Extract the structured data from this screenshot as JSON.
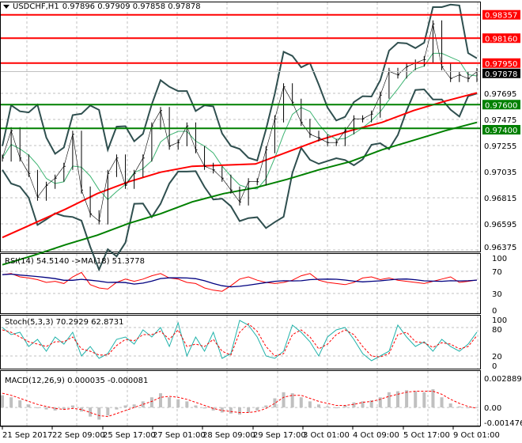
{
  "header": {
    "symbol": "USDCHF,H1",
    "ohlc": "0.97896 0.97909 0.97858 0.97878"
  },
  "colors": {
    "resistance": "#ff0000",
    "support": "#008000",
    "current": "#000000",
    "ma_fast": "#ff0000",
    "ma_slow": "#008000",
    "bands": "#2f4f4f",
    "rsi": "#ff0000",
    "rsi_ma": "#000080",
    "stoch_main": "#20b2aa",
    "stoch_signal": "#ff0000",
    "macd_hist": "#c0c0c0",
    "macd_signal": "#ff0000"
  },
  "chart_data": [
    {
      "type": "line",
      "title": "USDCHF,H1",
      "ylim": [
        0.96375,
        0.98357
      ],
      "x_tick_labels": [
        "21 Sep 2017",
        "22 Sep 09:00",
        "25 Sep 17:00",
        "27 Sep 01:00",
        "28 Sep 09:00",
        "29 Sep 17:00",
        "3 Oct 01:00",
        "4 Oct 09:00",
        "5 Oct 17:00",
        "9 Oct 01:00"
      ],
      "y_tick_labels": [
        "0.97695",
        "0.97475",
        "0.97255",
        "0.97035",
        "0.96815",
        "0.96595",
        "0.96375"
      ],
      "grid": true,
      "close": [
        0.9715,
        0.9738,
        0.9715,
        0.9702,
        0.9682,
        0.9692,
        0.9698,
        0.9708,
        0.9735,
        0.9688,
        0.9668,
        0.9662,
        0.9702,
        0.9715,
        0.9692,
        0.9702,
        0.9715,
        0.9742,
        0.9755,
        0.9725,
        0.9728,
        0.9742,
        0.9722,
        0.9708,
        0.9705,
        0.9698,
        0.9688,
        0.9678,
        0.9695,
        0.9695,
        0.9722,
        0.9748,
        0.9775,
        0.9762,
        0.9745,
        0.9735,
        0.9732,
        0.9728,
        0.9728,
        0.9738,
        0.9748,
        0.9748,
        0.9752,
        0.9768,
        0.9788,
        0.9785,
        0.9792,
        0.9795,
        0.9798,
        0.9828,
        0.9792,
        0.9782,
        0.9785,
        0.9782,
        0.97878
      ],
      "ma_fast": [
        0.9648,
        0.966,
        0.9672,
        0.9685,
        0.9695,
        0.9703,
        0.9708,
        0.9709,
        0.971,
        0.972,
        0.973,
        0.9738,
        0.9745,
        0.9755,
        0.9763,
        0.977
      ],
      "ma_slow": [
        0.9625,
        0.9633,
        0.9642,
        0.965,
        0.966,
        0.9668,
        0.9678,
        0.9685,
        0.969,
        0.9697,
        0.9705,
        0.9712,
        0.9722,
        0.973,
        0.9738,
        0.9745
      ],
      "levels": [
        {
          "value": "0.98357",
          "kind": "resistance"
        },
        {
          "value": "0.98160",
          "kind": "resistance"
        },
        {
          "value": "0.97950",
          "kind": "resistance"
        },
        {
          "value": "0.97878",
          "kind": "current"
        },
        {
          "value": "0.97600",
          "kind": "support"
        },
        {
          "value": "0.97400",
          "kind": "support"
        }
      ]
    },
    {
      "type": "line",
      "title": "RSI(14) 54.5140  ->MA(18) 51.3778",
      "ylim": [
        0,
        100
      ],
      "y_tick_labels": [
        "100",
        "70",
        "30",
        "0"
      ],
      "rsi": [
        64,
        66,
        60,
        58,
        55,
        50,
        52,
        48,
        60,
        68,
        46,
        40,
        38,
        50,
        56,
        52,
        56,
        62,
        66,
        58,
        56,
        50,
        48,
        40,
        36,
        34,
        44,
        56,
        60,
        54,
        50,
        48,
        50,
        54,
        62,
        66,
        54,
        50,
        48,
        46,
        50,
        58,
        60,
        55,
        58,
        54,
        52,
        50,
        48,
        52,
        56,
        60,
        50,
        52,
        54.5
      ]
    },
    {
      "type": "line",
      "title": "Stoch(5,3,3) 70.2929 62.8731",
      "ylim": [
        0,
        100
      ],
      "y_tick_labels": [
        "100",
        "80",
        "20",
        "0"
      ],
      "main": [
        80,
        65,
        70,
        40,
        55,
        30,
        60,
        45,
        70,
        20,
        40,
        15,
        25,
        55,
        60,
        45,
        75,
        60,
        80,
        40,
        90,
        20,
        60,
        30,
        70,
        15,
        25,
        95,
        85,
        60,
        20,
        15,
        30,
        85,
        70,
        50,
        20,
        60,
        75,
        80,
        55,
        25,
        10,
        20,
        30,
        85,
        60,
        40,
        50,
        30,
        55,
        40,
        30,
        45,
        70.3
      ],
      "signal": [
        75,
        70,
        60,
        50,
        45,
        40,
        50,
        50,
        60,
        35,
        30,
        22,
        22,
        42,
        55,
        52,
        65,
        65,
        72,
        55,
        75,
        40,
        45,
        40,
        55,
        30,
        22,
        70,
        88,
        72,
        40,
        20,
        25,
        65,
        75,
        60,
        35,
        45,
        65,
        75,
        65,
        40,
        20,
        18,
        25,
        65,
        70,
        50,
        48,
        38,
        48,
        45,
        35,
        40,
        62.9
      ]
    },
    {
      "type": "bar",
      "title": "MACD(12,26,9) 0.000035 -0.000081",
      "ylim": [
        -0.001476,
        0.002889
      ],
      "y_tick_labels": [
        "0.002889",
        "0.00",
        "-0.001476"
      ],
      "hist": [
        0.0012,
        0.001,
        0.0007,
        0.0003,
        0.0,
        -0.0002,
        -0.0003,
        -0.0002,
        0.0002,
        -0.0004,
        -0.0009,
        -0.0012,
        -0.0008,
        -0.0002,
        0.0002,
        0.0003,
        0.0006,
        0.001,
        0.0014,
        0.001,
        0.0008,
        0.0006,
        0.0002,
        -0.0001,
        -0.0003,
        -0.0005,
        -0.0006,
        -0.0007,
        -0.0005,
        -0.0003,
        0.0002,
        0.0009,
        0.0015,
        0.0014,
        0.001,
        0.0006,
        0.0003,
        0.0001,
        0.0,
        0.0002,
        0.0005,
        0.0006,
        0.0007,
        0.001,
        0.0015,
        0.0016,
        0.0017,
        0.0016,
        0.0015,
        0.0018,
        0.001,
        0.0004,
        0.0001,
        0.0,
        3.5e-05
      ],
      "signal": [
        0.0014,
        0.0012,
        0.0009,
        0.0006,
        0.0003,
        0.0001,
        -0.0001,
        -0.0002,
        -0.0001,
        -0.0002,
        -0.0005,
        -0.0008,
        -0.0009,
        -0.0006,
        -0.0003,
        0.0,
        0.0003,
        0.0006,
        0.001,
        0.0011,
        0.001,
        0.0008,
        0.0005,
        0.0002,
        -0.0001,
        -0.0003,
        -0.0004,
        -0.0005,
        -0.0005,
        -0.0004,
        -0.0001,
        0.0004,
        0.001,
        0.0012,
        0.0012,
        0.0009,
        0.0006,
        0.0004,
        0.0002,
        0.0002,
        0.0003,
        0.0005,
        0.0006,
        0.0008,
        0.0011,
        0.0013,
        0.0015,
        0.0016,
        0.0016,
        0.0016,
        0.0013,
        0.0008,
        0.0004,
        0.0001,
        -8.1e-05
      ]
    }
  ]
}
